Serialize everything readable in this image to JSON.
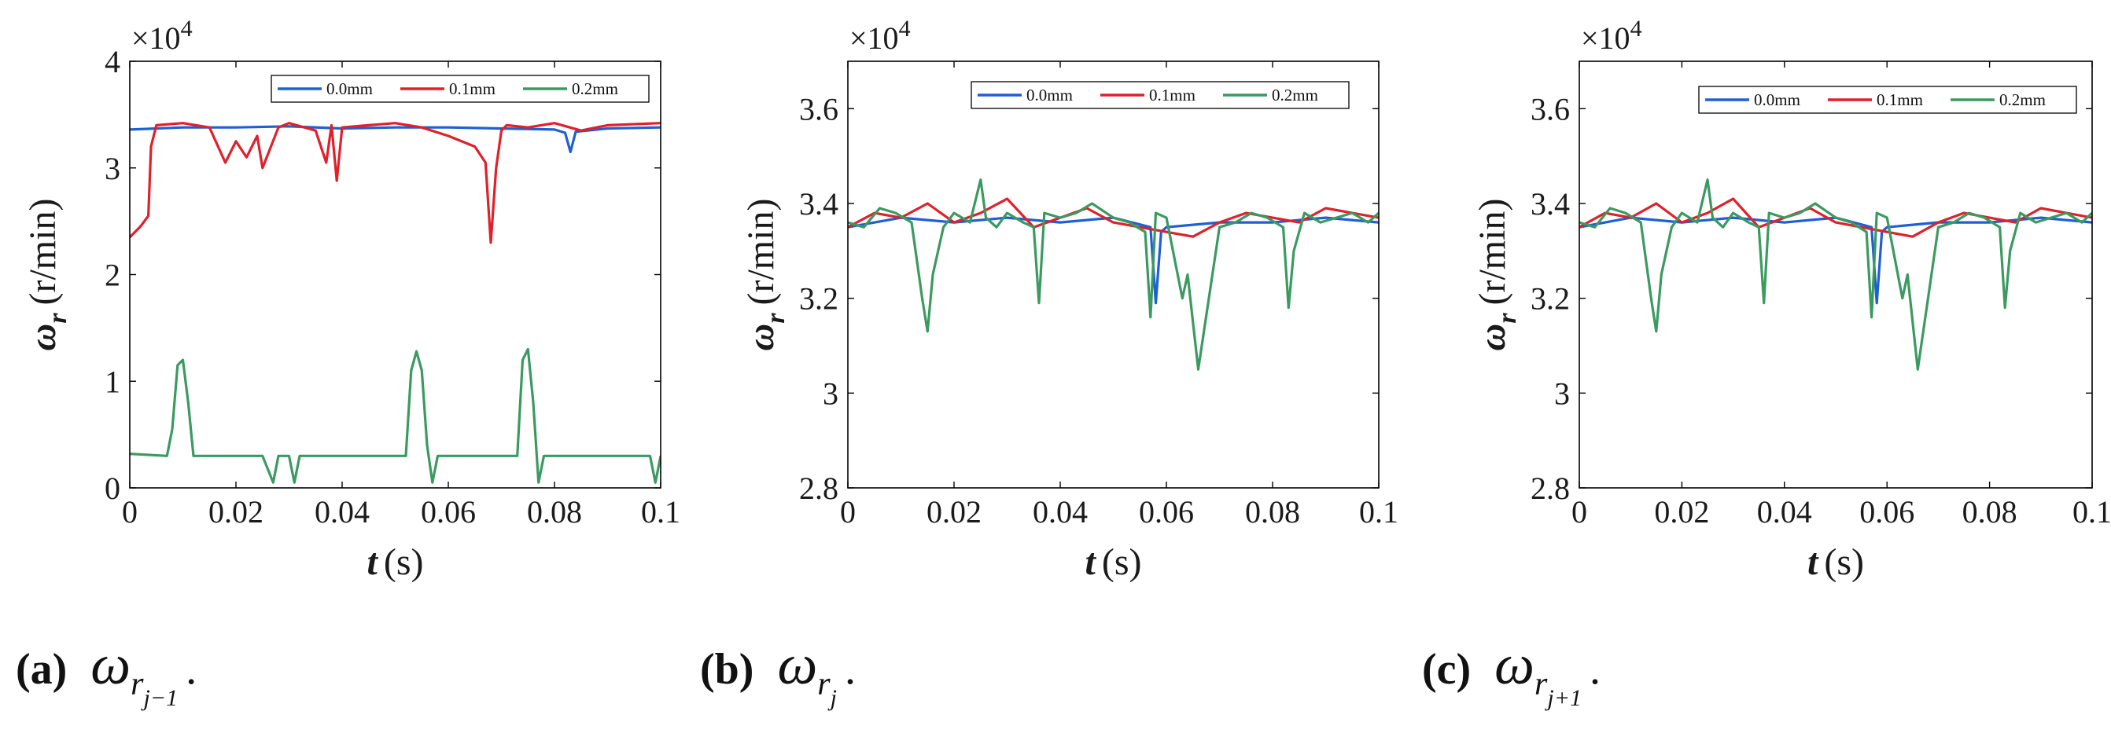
{
  "colors": {
    "s0": "#1f5fd6",
    "s1": "#e0202a",
    "s2": "#3a9a60",
    "axis": "#000000"
  },
  "chart_data": [
    {
      "type": "line",
      "panel": "a",
      "caption_label": "(a)",
      "caption_symbol": "ω",
      "caption_sub": "r",
      "caption_subsub": "j−1",
      "xlabel_var": "t",
      "xlabel_unit": "(s)",
      "ylabel_var": "ω",
      "ylabel_sub": "r",
      "ylabel_unit": "(r/min)",
      "exponent_base": "×10",
      "exponent_power": "4",
      "xlim": [
        0,
        0.1
      ],
      "ylim": [
        0,
        4
      ],
      "x_ticks": [
        0,
        0.02,
        0.04,
        0.06,
        0.08,
        0.1
      ],
      "x_tick_labels": [
        "0",
        "0.02",
        "0.04",
        "0.06",
        "0.08",
        "0.1"
      ],
      "y_ticks": [
        0,
        1,
        2,
        3,
        4
      ],
      "y_tick_labels": [
        "0",
        "1",
        "2",
        "3",
        "4"
      ],
      "legend": [
        "0.0mm",
        "0.1mm",
        "0.2mm"
      ],
      "series": [
        {
          "name": "0.0mm",
          "x": [
            0,
            0.01,
            0.02,
            0.03,
            0.04,
            0.05,
            0.06,
            0.07,
            0.08,
            0.082,
            0.083,
            0.084,
            0.09,
            0.1
          ],
          "y": [
            3.36,
            3.38,
            3.38,
            3.39,
            3.37,
            3.38,
            3.38,
            3.37,
            3.36,
            3.33,
            3.15,
            3.34,
            3.37,
            3.38
          ]
        },
        {
          "name": "0.1mm",
          "x": [
            0,
            0.002,
            0.0035,
            0.004,
            0.005,
            0.01,
            0.015,
            0.018,
            0.02,
            0.022,
            0.024,
            0.025,
            0.028,
            0.03,
            0.035,
            0.037,
            0.038,
            0.039,
            0.04,
            0.045,
            0.05,
            0.055,
            0.06,
            0.065,
            0.067,
            0.068,
            0.069,
            0.07,
            0.071,
            0.075,
            0.08,
            0.085,
            0.09,
            0.1
          ],
          "y": [
            2.35,
            2.45,
            2.55,
            3.2,
            3.4,
            3.42,
            3.38,
            3.05,
            3.25,
            3.1,
            3.3,
            3.0,
            3.38,
            3.42,
            3.35,
            3.05,
            3.4,
            2.88,
            3.38,
            3.4,
            3.42,
            3.38,
            3.3,
            3.2,
            3.05,
            2.3,
            3.0,
            3.35,
            3.4,
            3.38,
            3.42,
            3.35,
            3.4,
            3.42
          ]
        },
        {
          "name": "0.2mm",
          "x": [
            0,
            0.007,
            0.008,
            0.009,
            0.01,
            0.011,
            0.012,
            0.015,
            0.02,
            0.025,
            0.027,
            0.028,
            0.03,
            0.031,
            0.032,
            0.035,
            0.045,
            0.05,
            0.052,
            0.053,
            0.054,
            0.055,
            0.056,
            0.057,
            0.058,
            0.065,
            0.07,
            0.073,
            0.074,
            0.075,
            0.076,
            0.077,
            0.078,
            0.08,
            0.09,
            0.098,
            0.099,
            0.1
          ],
          "y": [
            0.32,
            0.3,
            0.55,
            1.15,
            1.2,
            0.8,
            0.3,
            0.3,
            0.3,
            0.3,
            0.05,
            0.3,
            0.3,
            0.05,
            0.3,
            0.3,
            0.3,
            0.3,
            0.3,
            1.1,
            1.28,
            1.1,
            0.4,
            0.05,
            0.3,
            0.3,
            0.3,
            0.3,
            1.2,
            1.3,
            0.8,
            0.05,
            0.3,
            0.3,
            0.3,
            0.3,
            0.05,
            0.3
          ]
        }
      ]
    },
    {
      "type": "line",
      "panel": "b",
      "caption_label": "(b)",
      "caption_symbol": "ω",
      "caption_sub": "r",
      "caption_subsub": "j",
      "xlabel_var": "t",
      "xlabel_unit": "(s)",
      "ylabel_var": "ω",
      "ylabel_sub": "r",
      "ylabel_unit": "(r/min)",
      "exponent_base": "×10",
      "exponent_power": "4",
      "xlim": [
        0,
        0.1
      ],
      "ylim": [
        2.8,
        3.7
      ],
      "x_ticks": [
        0,
        0.02,
        0.04,
        0.06,
        0.08,
        0.1
      ],
      "x_tick_labels": [
        "0",
        "0.02",
        "0.04",
        "0.06",
        "0.08",
        "0.1"
      ],
      "y_ticks": [
        2.8,
        3,
        3.2,
        3.4,
        3.6
      ],
      "y_tick_labels": [
        "2.8",
        "3",
        "3.2",
        "3.4",
        "3.6"
      ],
      "legend": [
        "0.0mm",
        "0.1mm",
        "0.2mm"
      ],
      "series": [
        {
          "name": "0.0mm",
          "x": [
            0,
            0.01,
            0.02,
            0.03,
            0.04,
            0.05,
            0.057,
            0.058,
            0.059,
            0.06,
            0.07,
            0.08,
            0.09,
            0.1
          ],
          "y": [
            3.35,
            3.37,
            3.36,
            3.37,
            3.36,
            3.37,
            3.35,
            3.19,
            3.34,
            3.35,
            3.36,
            3.36,
            3.37,
            3.36
          ]
        },
        {
          "name": "0.1mm",
          "x": [
            0,
            0.005,
            0.01,
            0.015,
            0.02,
            0.025,
            0.03,
            0.035,
            0.04,
            0.045,
            0.05,
            0.055,
            0.06,
            0.065,
            0.07,
            0.075,
            0.08,
            0.085,
            0.09,
            0.095,
            0.1
          ],
          "y": [
            3.35,
            3.38,
            3.37,
            3.4,
            3.36,
            3.38,
            3.41,
            3.35,
            3.37,
            3.39,
            3.36,
            3.35,
            3.34,
            3.33,
            3.36,
            3.38,
            3.37,
            3.36,
            3.39,
            3.38,
            3.37
          ]
        },
        {
          "name": "0.2mm",
          "x": [
            0,
            0.003,
            0.006,
            0.009,
            0.012,
            0.014,
            0.015,
            0.016,
            0.018,
            0.02,
            0.023,
            0.025,
            0.026,
            0.028,
            0.03,
            0.033,
            0.035,
            0.036,
            0.037,
            0.04,
            0.043,
            0.046,
            0.05,
            0.053,
            0.056,
            0.057,
            0.058,
            0.06,
            0.063,
            0.064,
            0.066,
            0.068,
            0.07,
            0.073,
            0.076,
            0.079,
            0.082,
            0.083,
            0.084,
            0.086,
            0.089,
            0.092,
            0.095,
            0.098,
            0.1
          ],
          "y": [
            3.36,
            3.35,
            3.39,
            3.38,
            3.36,
            3.2,
            3.13,
            3.25,
            3.35,
            3.38,
            3.36,
            3.45,
            3.37,
            3.35,
            3.38,
            3.36,
            3.35,
            3.19,
            3.38,
            3.37,
            3.38,
            3.4,
            3.37,
            3.36,
            3.34,
            3.16,
            3.38,
            3.37,
            3.2,
            3.25,
            3.05,
            3.2,
            3.35,
            3.36,
            3.38,
            3.37,
            3.35,
            3.18,
            3.3,
            3.38,
            3.36,
            3.37,
            3.38,
            3.36,
            3.38
          ]
        }
      ]
    },
    {
      "type": "line",
      "panel": "c",
      "caption_label": "(c)",
      "caption_symbol": "ω",
      "caption_sub": "r",
      "caption_subsub": "j+1",
      "xlabel_var": "t",
      "xlabel_unit": "(s)",
      "ylabel_var": "ω",
      "ylabel_sub": "r",
      "ylabel_unit": "(r/min)",
      "exponent_base": "×10",
      "exponent_power": "4",
      "xlim": [
        0,
        0.1
      ],
      "ylim": [
        2.8,
        3.7
      ],
      "x_ticks": [
        0,
        0.02,
        0.04,
        0.06,
        0.08,
        0.1
      ],
      "x_tick_labels": [
        "0",
        "0.02",
        "0.04",
        "0.06",
        "0.08",
        "0.1"
      ],
      "y_ticks": [
        2.8,
        3,
        3.2,
        3.4,
        3.6
      ],
      "y_tick_labels": [
        "2.8",
        "3",
        "3.2",
        "3.4",
        "3.6"
      ],
      "legend": [
        "0.0mm",
        "0.1mm",
        "0.2mm"
      ],
      "series": [
        {
          "name": "0.0mm",
          "x": [
            0,
            0.01,
            0.02,
            0.03,
            0.04,
            0.05,
            0.057,
            0.058,
            0.059,
            0.06,
            0.07,
            0.08,
            0.09,
            0.1
          ],
          "y": [
            3.35,
            3.37,
            3.36,
            3.37,
            3.36,
            3.37,
            3.35,
            3.19,
            3.34,
            3.35,
            3.36,
            3.36,
            3.37,
            3.36
          ]
        },
        {
          "name": "0.1mm",
          "x": [
            0,
            0.005,
            0.01,
            0.015,
            0.02,
            0.025,
            0.03,
            0.035,
            0.04,
            0.045,
            0.05,
            0.055,
            0.06,
            0.065,
            0.07,
            0.075,
            0.08,
            0.085,
            0.09,
            0.095,
            0.1
          ],
          "y": [
            3.35,
            3.38,
            3.37,
            3.4,
            3.36,
            3.38,
            3.41,
            3.35,
            3.37,
            3.39,
            3.36,
            3.35,
            3.34,
            3.33,
            3.36,
            3.38,
            3.37,
            3.36,
            3.39,
            3.38,
            3.37
          ]
        },
        {
          "name": "0.2mm",
          "x": [
            0,
            0.003,
            0.006,
            0.009,
            0.012,
            0.014,
            0.015,
            0.016,
            0.018,
            0.02,
            0.023,
            0.025,
            0.026,
            0.028,
            0.03,
            0.033,
            0.035,
            0.036,
            0.037,
            0.04,
            0.043,
            0.046,
            0.05,
            0.053,
            0.056,
            0.057,
            0.058,
            0.06,
            0.063,
            0.064,
            0.066,
            0.068,
            0.07,
            0.073,
            0.076,
            0.079,
            0.082,
            0.083,
            0.084,
            0.086,
            0.089,
            0.092,
            0.095,
            0.098,
            0.1
          ],
          "y": [
            3.36,
            3.35,
            3.39,
            3.38,
            3.36,
            3.2,
            3.13,
            3.25,
            3.35,
            3.38,
            3.36,
            3.45,
            3.37,
            3.35,
            3.38,
            3.36,
            3.35,
            3.19,
            3.38,
            3.37,
            3.38,
            3.4,
            3.37,
            3.36,
            3.34,
            3.16,
            3.38,
            3.37,
            3.2,
            3.25,
            3.05,
            3.2,
            3.35,
            3.36,
            3.38,
            3.37,
            3.35,
            3.18,
            3.3,
            3.38,
            3.36,
            3.37,
            3.38,
            3.36,
            3.38
          ]
        }
      ]
    }
  ]
}
